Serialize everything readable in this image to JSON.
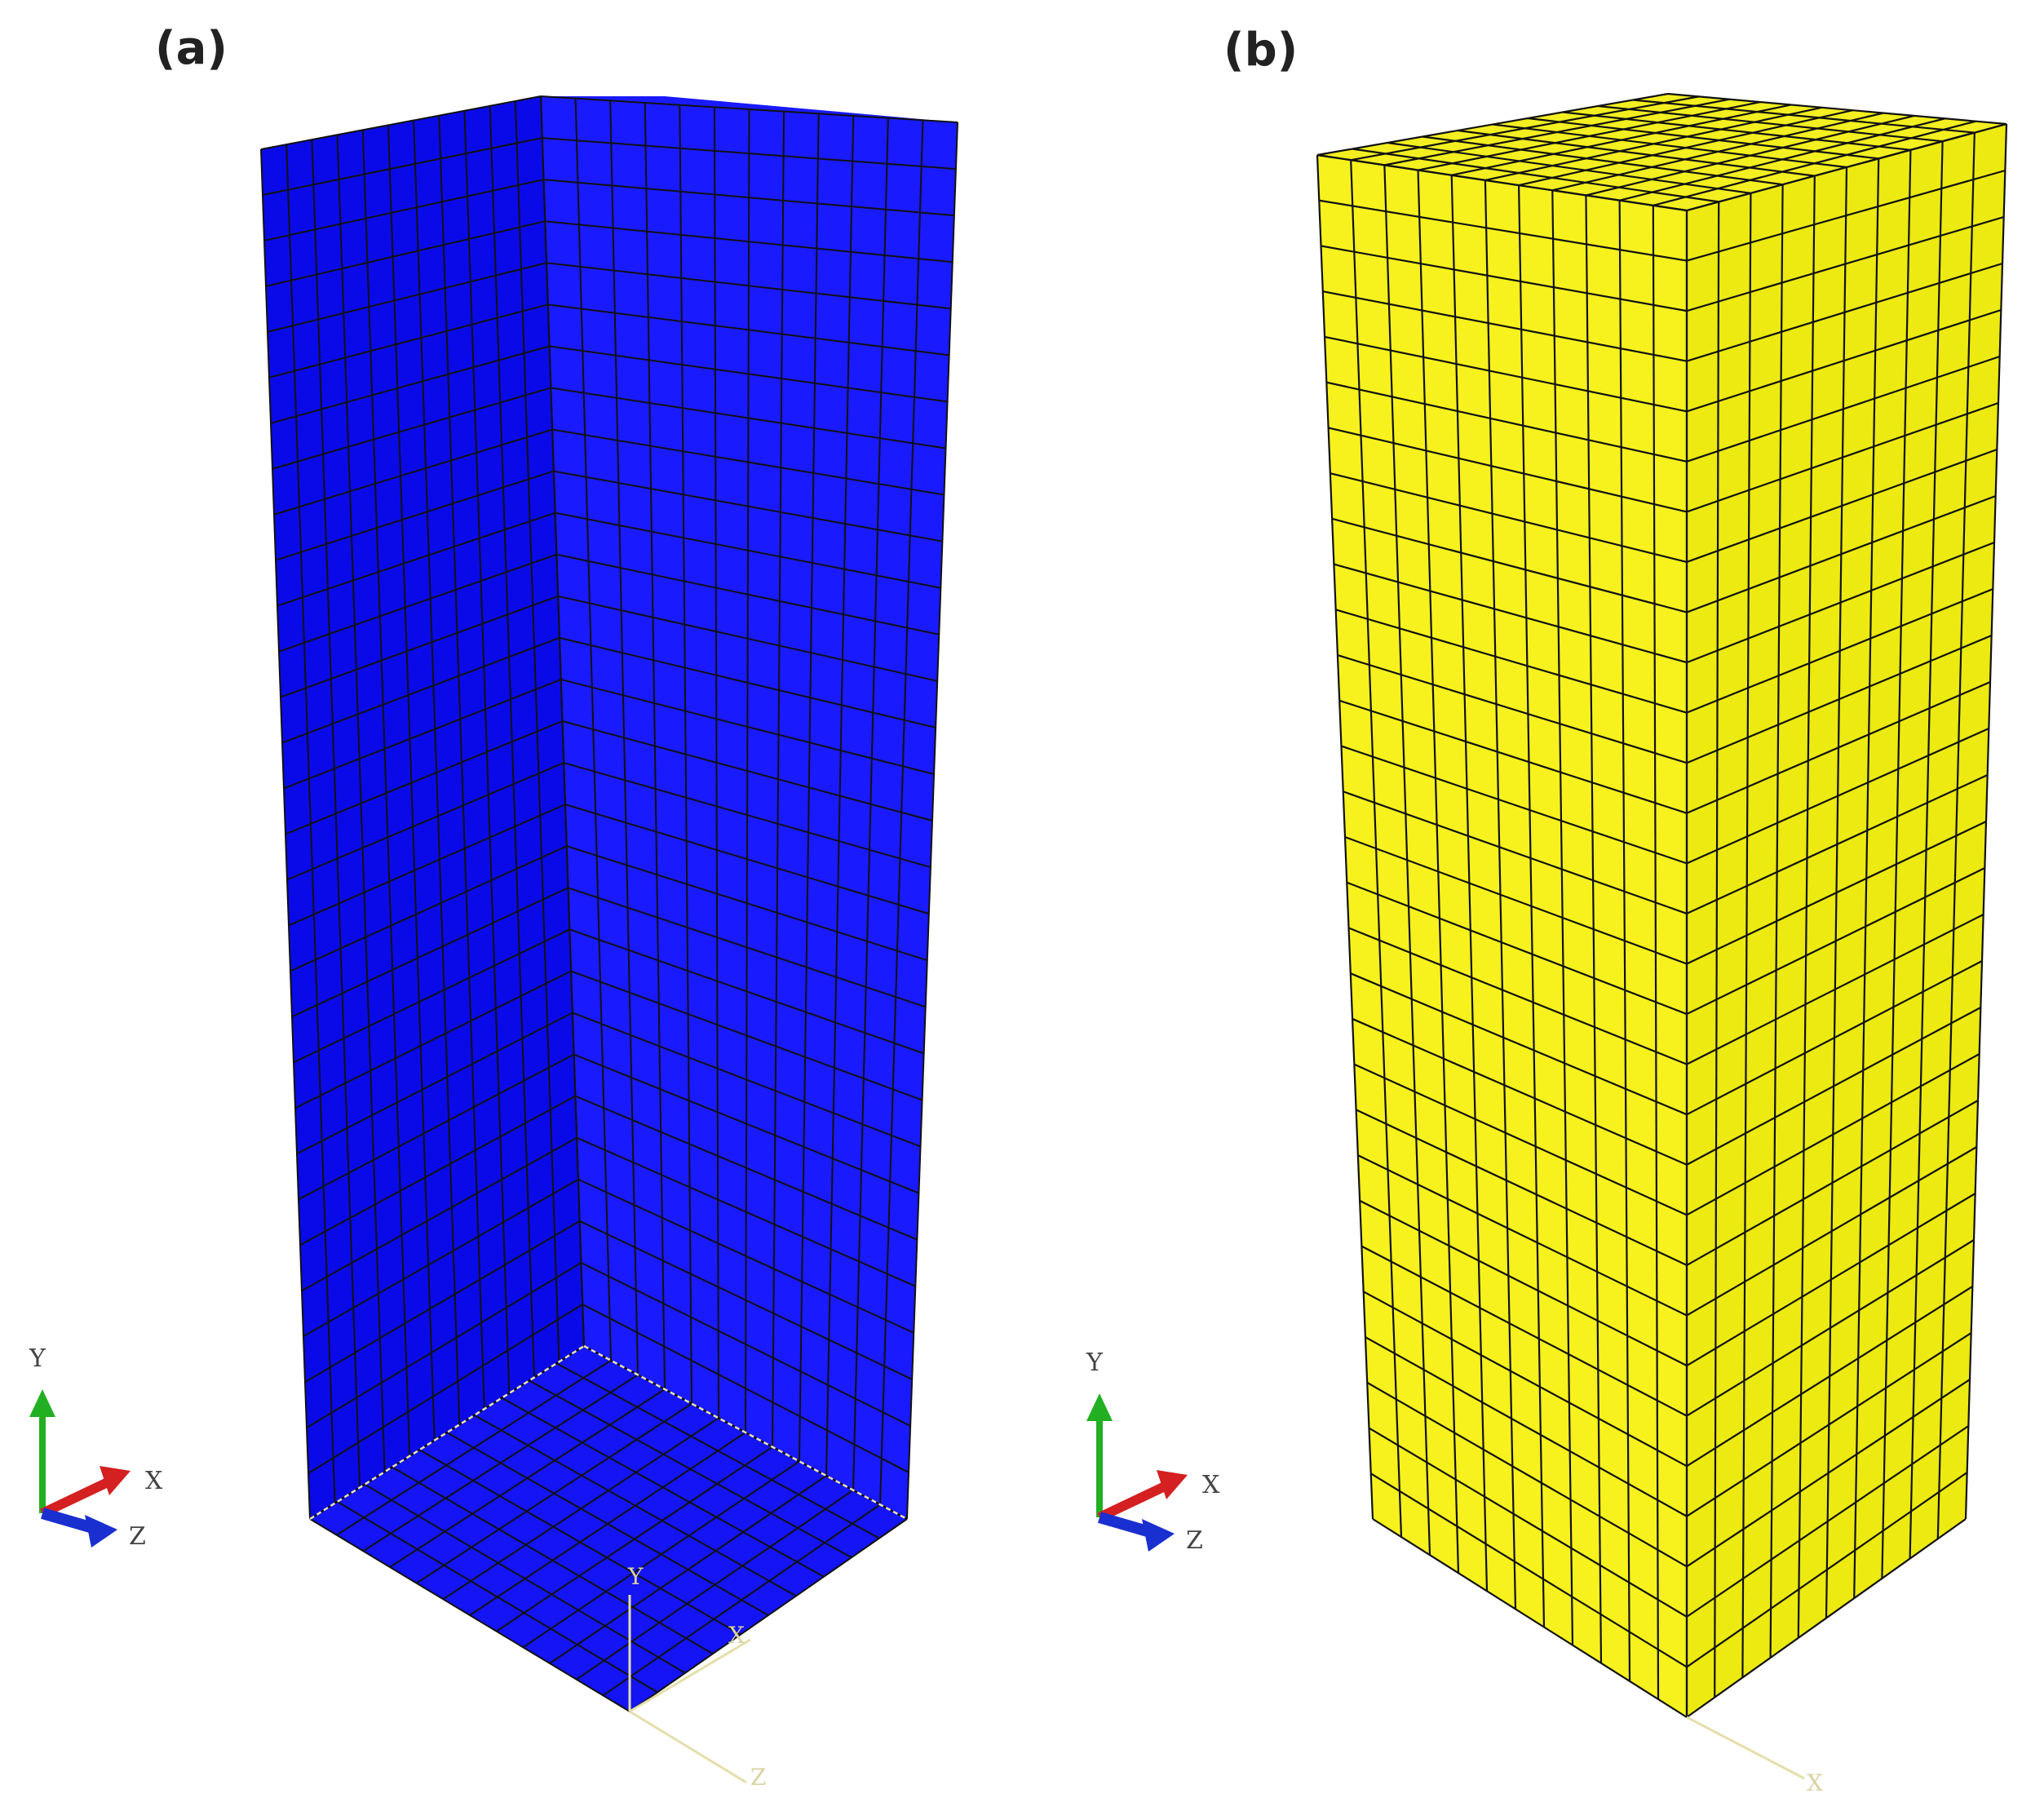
{
  "panels": [
    {
      "id": "a",
      "label": "(a)",
      "description_color": "#1010f0",
      "mesh": {
        "rows": 30,
        "left_cols": 11,
        "right_cols": 12,
        "floor_rows": 10
      },
      "triad": {
        "y": "Y",
        "x": "X",
        "z": "Z"
      },
      "origin_axes": {
        "y": "Y",
        "x": "X",
        "z": "Z"
      }
    },
    {
      "id": "b",
      "label": "(b)",
      "description_color": "#f7f21a",
      "mesh": {
        "rows": 30,
        "left_cols": 11,
        "right_cols": 10,
        "top_rows": 11
      },
      "triad": {
        "y": "Y",
        "x": "X",
        "z": "Z"
      },
      "origin_axes": {
        "x": "X"
      }
    }
  ],
  "colors": {
    "blue_left": "#0a0ae8",
    "blue_right": "#1a1aff",
    "blue_floor": "#1414f4",
    "yellow_left": "#f7f21e",
    "yellow_right": "#ecea10",
    "yellow_top": "#f3ef20",
    "grid_line": "#111111",
    "triad_y": "#22b022",
    "triad_x": "#d42020",
    "triad_z": "#1a2fd0",
    "origin_line": "#e4dfaa"
  }
}
